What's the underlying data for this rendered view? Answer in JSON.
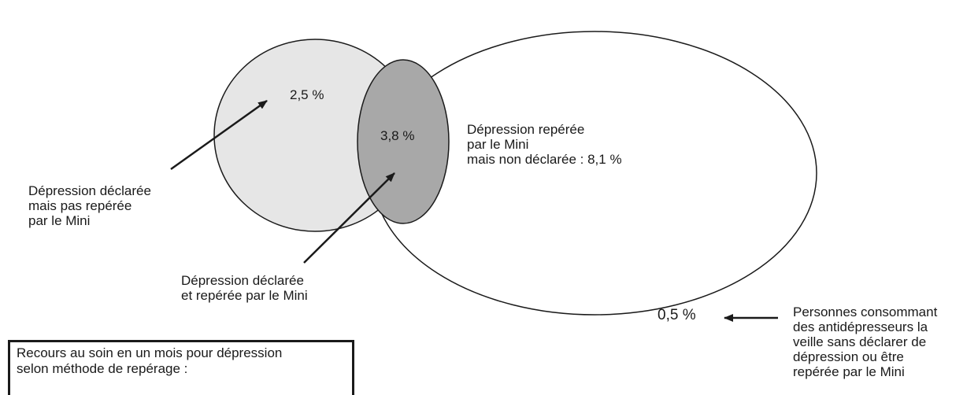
{
  "colors": {
    "declared_circle": "#e6e6e6",
    "overlap": "#a8a8a8",
    "detected_ellipse": "#ffffff",
    "stroke": "#1a1a1a"
  },
  "regions": {
    "declared_only_pct": "2,5 %",
    "overlap_pct": "3,8 %",
    "outside_pct": "0,5 %"
  },
  "labels": {
    "detected_not_declared": [
      "Dépression repérée",
      "par le Mini",
      "mais non déclarée : 8,1 %"
    ],
    "declared_not_detected": [
      "Dépression déclarée",
      "mais pas repérée",
      "par le Mini"
    ],
    "declared_and_detected": [
      "Dépression déclarée",
      "et repérée par le Mini"
    ],
    "antidepressants": [
      "Personnes consommant",
      "des antidépresseurs la",
      "veille sans déclarer de",
      "dépression ou être",
      "repérée par le Mini"
    ]
  },
  "legend": {
    "line1": "Recours au soin en un mois pour dépression",
    "line2": "selon méthode de repérage :"
  }
}
